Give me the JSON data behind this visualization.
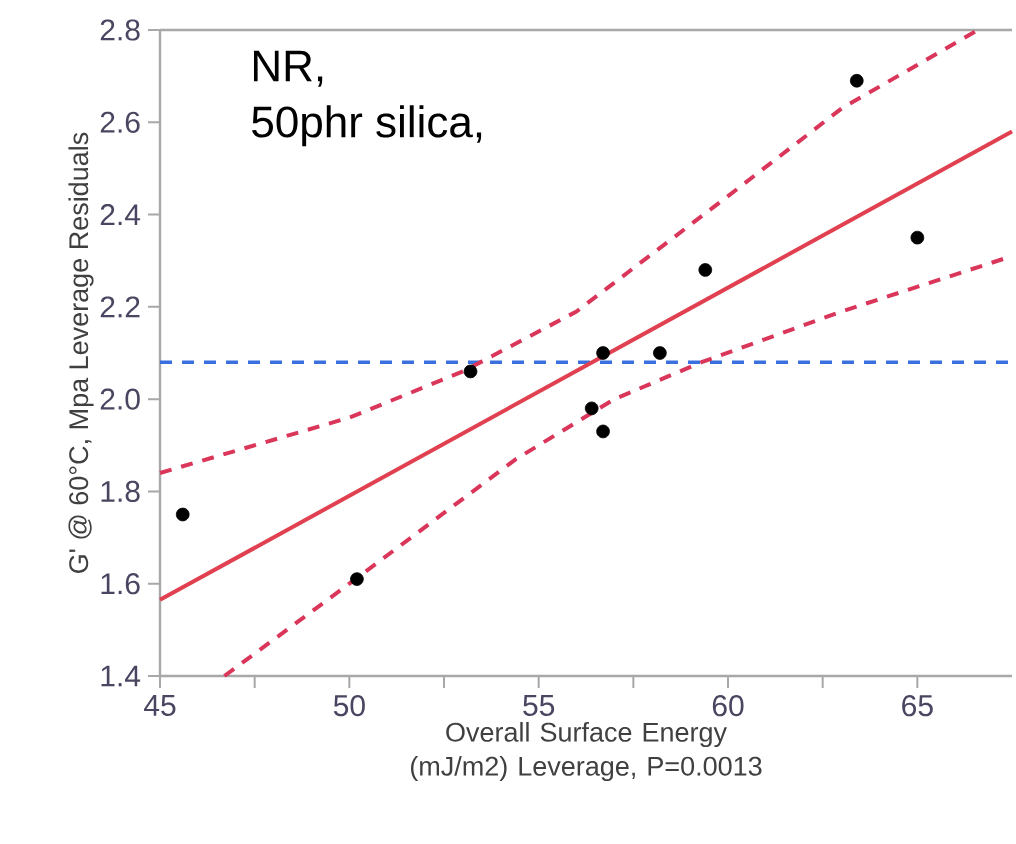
{
  "chart_data": {
    "type": "scatter",
    "xlabel": "Overall Surface Energy (mJ/m2) Leverage, P=0.0013",
    "ylabel": "G' @ 60°C, Mpa Leverage Residuals",
    "annotations": [
      "NR,",
      "50phr silica,"
    ],
    "xlim": [
      45,
      67.5
    ],
    "ylim": [
      1.4,
      2.8
    ],
    "xticks": [
      45,
      {
        "value": 47.5,
        "label": null
      },
      50,
      {
        "value": 52.5,
        "label": null
      },
      55,
      {
        "value": 57.5,
        "label": null
      },
      60,
      {
        "value": 62.5,
        "label": null
      },
      65
    ],
    "yticks": [
      1.4,
      1.6,
      1.8,
      {
        "value": 2,
        "label": "2.0"
      },
      2.2,
      2.4,
      2.6,
      2.8
    ],
    "grid": false,
    "series": [
      {
        "color": "#000000",
        "marker": "circle",
        "x": [
          45.6,
          50.2,
          53.2,
          56.4,
          56.7,
          56.7,
          58.2,
          59.4,
          63.4,
          65.0
        ],
        "values": [
          1.75,
          1.61,
          2.06,
          1.98,
          1.93,
          2.1,
          2.1,
          2.28,
          2.69,
          2.35
        ]
      },
      {
        "type": "line",
        "color": "#e0404f",
        "line_style": "solid",
        "x": [
          45,
          67.5
        ],
        "values": [
          1.565,
          2.58
        ]
      },
      {
        "type": "line",
        "color": "#d9365a",
        "line_style": "dashed",
        "x": [
          45,
          50,
          53,
          56,
          60,
          63,
          66.6
        ],
        "values": [
          1.84,
          1.96,
          2.06,
          2.19,
          2.44,
          2.63,
          2.8
        ]
      },
      {
        "type": "line",
        "color": "#d9365a",
        "line_style": "dashed",
        "x": [
          46.7,
          50,
          54.4,
          57,
          59.3,
          63,
          67.5
        ],
        "values": [
          1.4,
          1.6,
          1.87,
          2.0,
          2.08,
          2.19,
          2.31
        ]
      }
    ],
    "ref_lines": [
      {
        "axis": "y",
        "value": 2.08,
        "color": "#3a6fe0",
        "line_style": "dashed"
      }
    ]
  }
}
